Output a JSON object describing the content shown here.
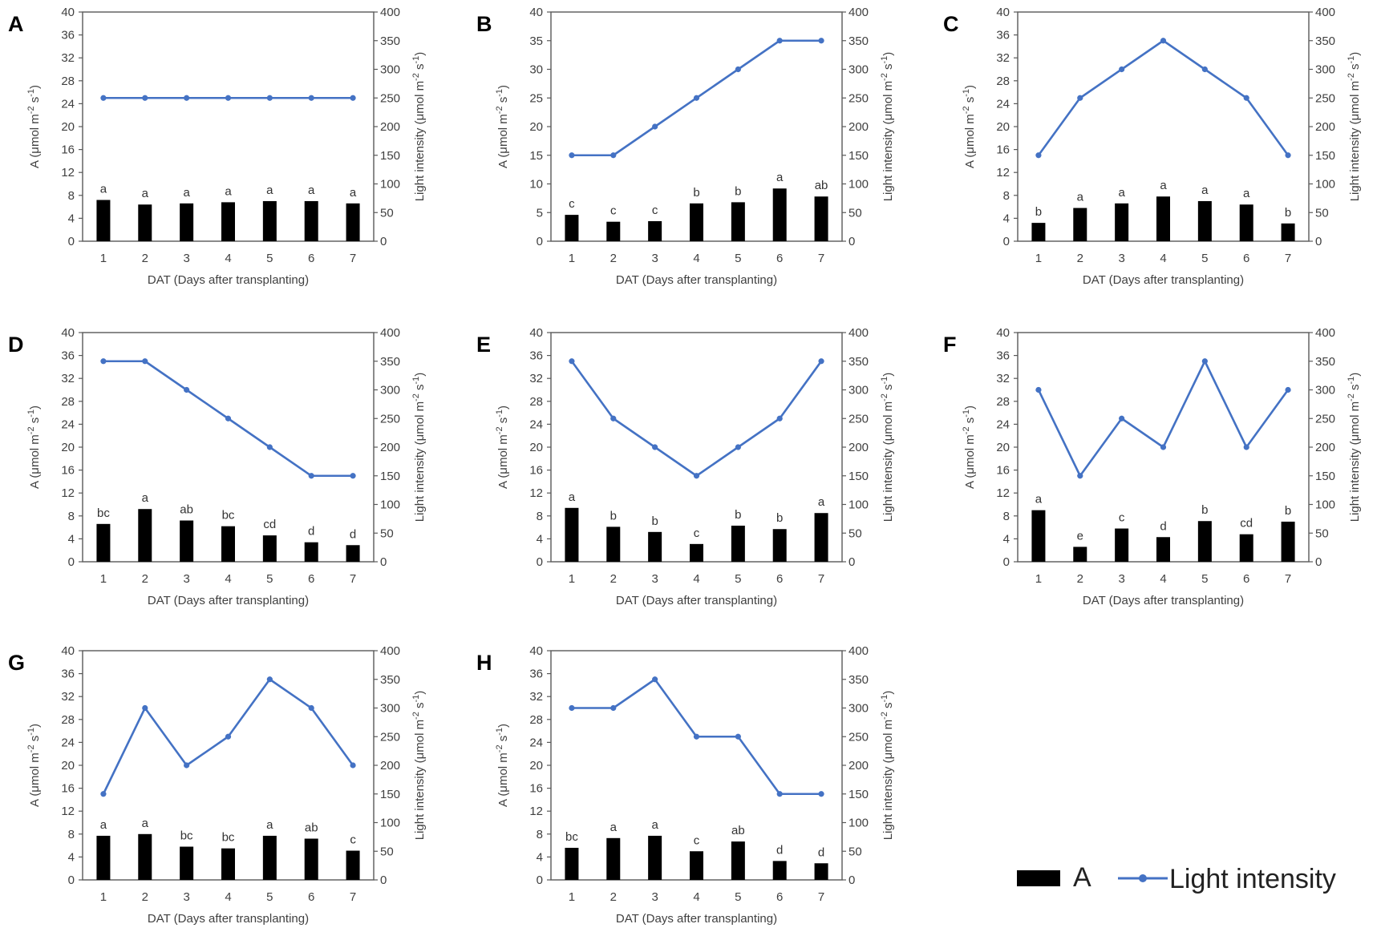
{
  "colors": {
    "bar": "#000000",
    "line": "#4472C4",
    "axis": "#595959",
    "text": "#404040"
  },
  "legend": {
    "bar_label": "A",
    "line_label": "Light intensity",
    "placement": "bottom-right"
  },
  "chart_data": [
    {
      "panel": "A",
      "type": "bar+line",
      "categories": [
        "1",
        "2",
        "3",
        "4",
        "5",
        "6",
        "7"
      ],
      "xlabel": "DAT (Days after transplanting)",
      "ylabel_left": "A (μmol m⁻² s⁻¹)",
      "ylabel_right": "Light intensity (μmol m⁻² s⁻¹)",
      "ylim_left": [
        0,
        40
      ],
      "yticks_left": [
        0,
        4,
        8,
        12,
        16,
        20,
        24,
        28,
        32,
        36,
        40
      ],
      "ylim_right": [
        0,
        400
      ],
      "yticks_right": [
        0,
        50,
        100,
        150,
        200,
        250,
        300,
        350,
        400
      ],
      "series": [
        {
          "name": "A",
          "kind": "bar",
          "axis": "left",
          "values": [
            7.2,
            6.4,
            6.6,
            6.8,
            7.0,
            7.0,
            6.6
          ]
        },
        {
          "name": "Light intensity",
          "kind": "line",
          "axis": "right",
          "values": [
            250,
            250,
            250,
            250,
            250,
            250,
            250
          ]
        }
      ],
      "bar_annotations": [
        "a",
        "a",
        "a",
        "a",
        "a",
        "a",
        "a"
      ]
    },
    {
      "panel": "B",
      "type": "bar+line",
      "categories": [
        "1",
        "2",
        "3",
        "4",
        "5",
        "6",
        "7"
      ],
      "xlabel": "DAT (Days after transplanting)",
      "ylabel_left": "A (μmol m⁻² s⁻¹)",
      "ylabel_right": "Light intensity (μmol m⁻² s⁻¹)",
      "ylim_left": [
        0,
        40
      ],
      "yticks_left": [
        0,
        5,
        10,
        15,
        20,
        25,
        30,
        35,
        40
      ],
      "ylim_right": [
        0,
        400
      ],
      "yticks_right": [
        0,
        50,
        100,
        150,
        200,
        250,
        300,
        350,
        400
      ],
      "series": [
        {
          "name": "A",
          "kind": "bar",
          "axis": "left",
          "values": [
            4.6,
            3.4,
            3.5,
            6.6,
            6.8,
            9.2,
            7.8
          ]
        },
        {
          "name": "Light intensity",
          "kind": "line",
          "axis": "right",
          "values": [
            150,
            150,
            200,
            250,
            300,
            350,
            350
          ]
        }
      ],
      "bar_annotations": [
        "c",
        "c",
        "c",
        "b",
        "b",
        "a",
        "ab"
      ]
    },
    {
      "panel": "C",
      "type": "bar+line",
      "categories": [
        "1",
        "2",
        "3",
        "4",
        "5",
        "6",
        "7"
      ],
      "xlabel": "DAT (Days after transplanting)",
      "ylabel_left": "A (μmol m⁻² s⁻¹)",
      "ylabel_right": "Light intensity (μmol m⁻² s⁻¹)",
      "ylim_left": [
        0,
        40
      ],
      "yticks_left": [
        0,
        4,
        8,
        12,
        16,
        20,
        24,
        28,
        32,
        36,
        40
      ],
      "ylim_right": [
        0,
        400
      ],
      "yticks_right": [
        0,
        50,
        100,
        150,
        200,
        250,
        300,
        350,
        400
      ],
      "series": [
        {
          "name": "A",
          "kind": "bar",
          "axis": "left",
          "values": [
            3.2,
            5.8,
            6.6,
            7.8,
            7.0,
            6.4,
            3.1
          ]
        },
        {
          "name": "Light intensity",
          "kind": "line",
          "axis": "right",
          "values": [
            150,
            250,
            300,
            350,
            300,
            250,
            150
          ]
        }
      ],
      "bar_annotations": [
        "b",
        "a",
        "a",
        "a",
        "a",
        "a",
        "b"
      ]
    },
    {
      "panel": "D",
      "type": "bar+line",
      "categories": [
        "1",
        "2",
        "3",
        "4",
        "5",
        "6",
        "7"
      ],
      "xlabel": "DAT (Days after transplanting)",
      "ylabel_left": "A (μmol m⁻² s⁻¹)",
      "ylabel_right": "Light intensity (μmol m⁻² s⁻¹)",
      "ylim_left": [
        0,
        40
      ],
      "yticks_left": [
        0,
        4,
        8,
        12,
        16,
        20,
        24,
        28,
        32,
        36,
        40
      ],
      "ylim_right": [
        0,
        400
      ],
      "yticks_right": [
        0,
        50,
        100,
        150,
        200,
        250,
        300,
        350,
        400
      ],
      "series": [
        {
          "name": "A",
          "kind": "bar",
          "axis": "left",
          "values": [
            6.6,
            9.2,
            7.2,
            6.2,
            4.6,
            3.4,
            2.9
          ]
        },
        {
          "name": "Light intensity",
          "kind": "line",
          "axis": "right",
          "values": [
            350,
            350,
            300,
            250,
            200,
            150,
            150
          ]
        }
      ],
      "bar_annotations": [
        "bc",
        "a",
        "ab",
        "bc",
        "cd",
        "d",
        "d"
      ]
    },
    {
      "panel": "E",
      "type": "bar+line",
      "categories": [
        "1",
        "2",
        "3",
        "4",
        "5",
        "6",
        "7"
      ],
      "xlabel": "DAT (Days after transplanting)",
      "ylabel_left": "A (μmol m⁻² s⁻¹)",
      "ylabel_right": "Light intensity (μmol m⁻² s⁻¹)",
      "ylim_left": [
        0,
        40
      ],
      "yticks_left": [
        0,
        4,
        8,
        12,
        16,
        20,
        24,
        28,
        32,
        36,
        40
      ],
      "ylim_right": [
        0,
        400
      ],
      "yticks_right": [
        0,
        50,
        100,
        150,
        200,
        250,
        300,
        350,
        400
      ],
      "series": [
        {
          "name": "A",
          "kind": "bar",
          "axis": "left",
          "values": [
            9.4,
            6.1,
            5.2,
            3.1,
            6.3,
            5.7,
            8.5
          ]
        },
        {
          "name": "Light intensity",
          "kind": "line",
          "axis": "right",
          "values": [
            350,
            250,
            200,
            150,
            200,
            250,
            350
          ]
        }
      ],
      "bar_annotations": [
        "a",
        "b",
        "b",
        "c",
        "b",
        "b",
        "a"
      ]
    },
    {
      "panel": "F",
      "type": "bar+line",
      "categories": [
        "1",
        "2",
        "3",
        "4",
        "5",
        "6",
        "7"
      ],
      "xlabel": "DAT (Days after transplanting)",
      "ylabel_left": "A (μmol m⁻² s⁻¹)",
      "ylabel_right": "Light intensity (μmol m⁻² s⁻¹)",
      "ylim_left": [
        0,
        40
      ],
      "yticks_left": [
        0,
        4,
        8,
        12,
        16,
        20,
        24,
        28,
        32,
        36,
        40
      ],
      "ylim_right": [
        0,
        400
      ],
      "yticks_right": [
        0,
        50,
        100,
        150,
        200,
        250,
        300,
        350,
        400
      ],
      "series": [
        {
          "name": "A",
          "kind": "bar",
          "axis": "left",
          "values": [
            9.0,
            2.6,
            5.8,
            4.3,
            7.1,
            4.8,
            7.0
          ]
        },
        {
          "name": "Light intensity",
          "kind": "line",
          "axis": "right",
          "values": [
            300,
            150,
            250,
            200,
            350,
            200,
            300
          ]
        }
      ],
      "bar_annotations": [
        "a",
        "e",
        "c",
        "d",
        "b",
        "cd",
        "b"
      ]
    },
    {
      "panel": "G",
      "type": "bar+line",
      "categories": [
        "1",
        "2",
        "3",
        "4",
        "5",
        "6",
        "7"
      ],
      "xlabel": "DAT (Days after transplanting)",
      "ylabel_left": "A (μmol m⁻² s⁻¹)",
      "ylabel_right": "Light intensity (μmol m⁻² s⁻¹)",
      "ylim_left": [
        0,
        40
      ],
      "yticks_left": [
        0,
        4,
        8,
        12,
        16,
        20,
        24,
        28,
        32,
        36,
        40
      ],
      "ylim_right": [
        0,
        400
      ],
      "yticks_right": [
        0,
        50,
        100,
        150,
        200,
        250,
        300,
        350,
        400
      ],
      "series": [
        {
          "name": "A",
          "kind": "bar",
          "axis": "left",
          "values": [
            7.7,
            8.0,
            5.8,
            5.5,
            7.7,
            7.2,
            5.1
          ]
        },
        {
          "name": "Light intensity",
          "kind": "line",
          "axis": "right",
          "values": [
            150,
            300,
            200,
            250,
            350,
            300,
            200
          ]
        }
      ],
      "bar_annotations": [
        "a",
        "a",
        "bc",
        "bc",
        "a",
        "ab",
        "c"
      ]
    },
    {
      "panel": "H",
      "type": "bar+line",
      "categories": [
        "1",
        "2",
        "3",
        "4",
        "5",
        "6",
        "7"
      ],
      "xlabel": "DAT (Days after transplanting)",
      "ylabel_left": "A (μmol m⁻² s⁻¹)",
      "ylabel_right": "Light intensity (μmol m⁻² s⁻¹)",
      "ylim_left": [
        0,
        40
      ],
      "yticks_left": [
        0,
        4,
        8,
        12,
        16,
        20,
        24,
        28,
        32,
        36,
        40
      ],
      "ylim_right": [
        0,
        400
      ],
      "yticks_right": [
        0,
        50,
        100,
        150,
        200,
        250,
        300,
        350,
        400
      ],
      "series": [
        {
          "name": "A",
          "kind": "bar",
          "axis": "left",
          "values": [
            5.6,
            7.3,
            7.7,
            5.0,
            6.7,
            3.3,
            2.9
          ]
        },
        {
          "name": "Light intensity",
          "kind": "line",
          "axis": "right",
          "values": [
            300,
            300,
            350,
            250,
            250,
            150,
            150
          ]
        }
      ],
      "bar_annotations": [
        "bc",
        "a",
        "a",
        "c",
        "ab",
        "d",
        "d"
      ]
    }
  ]
}
